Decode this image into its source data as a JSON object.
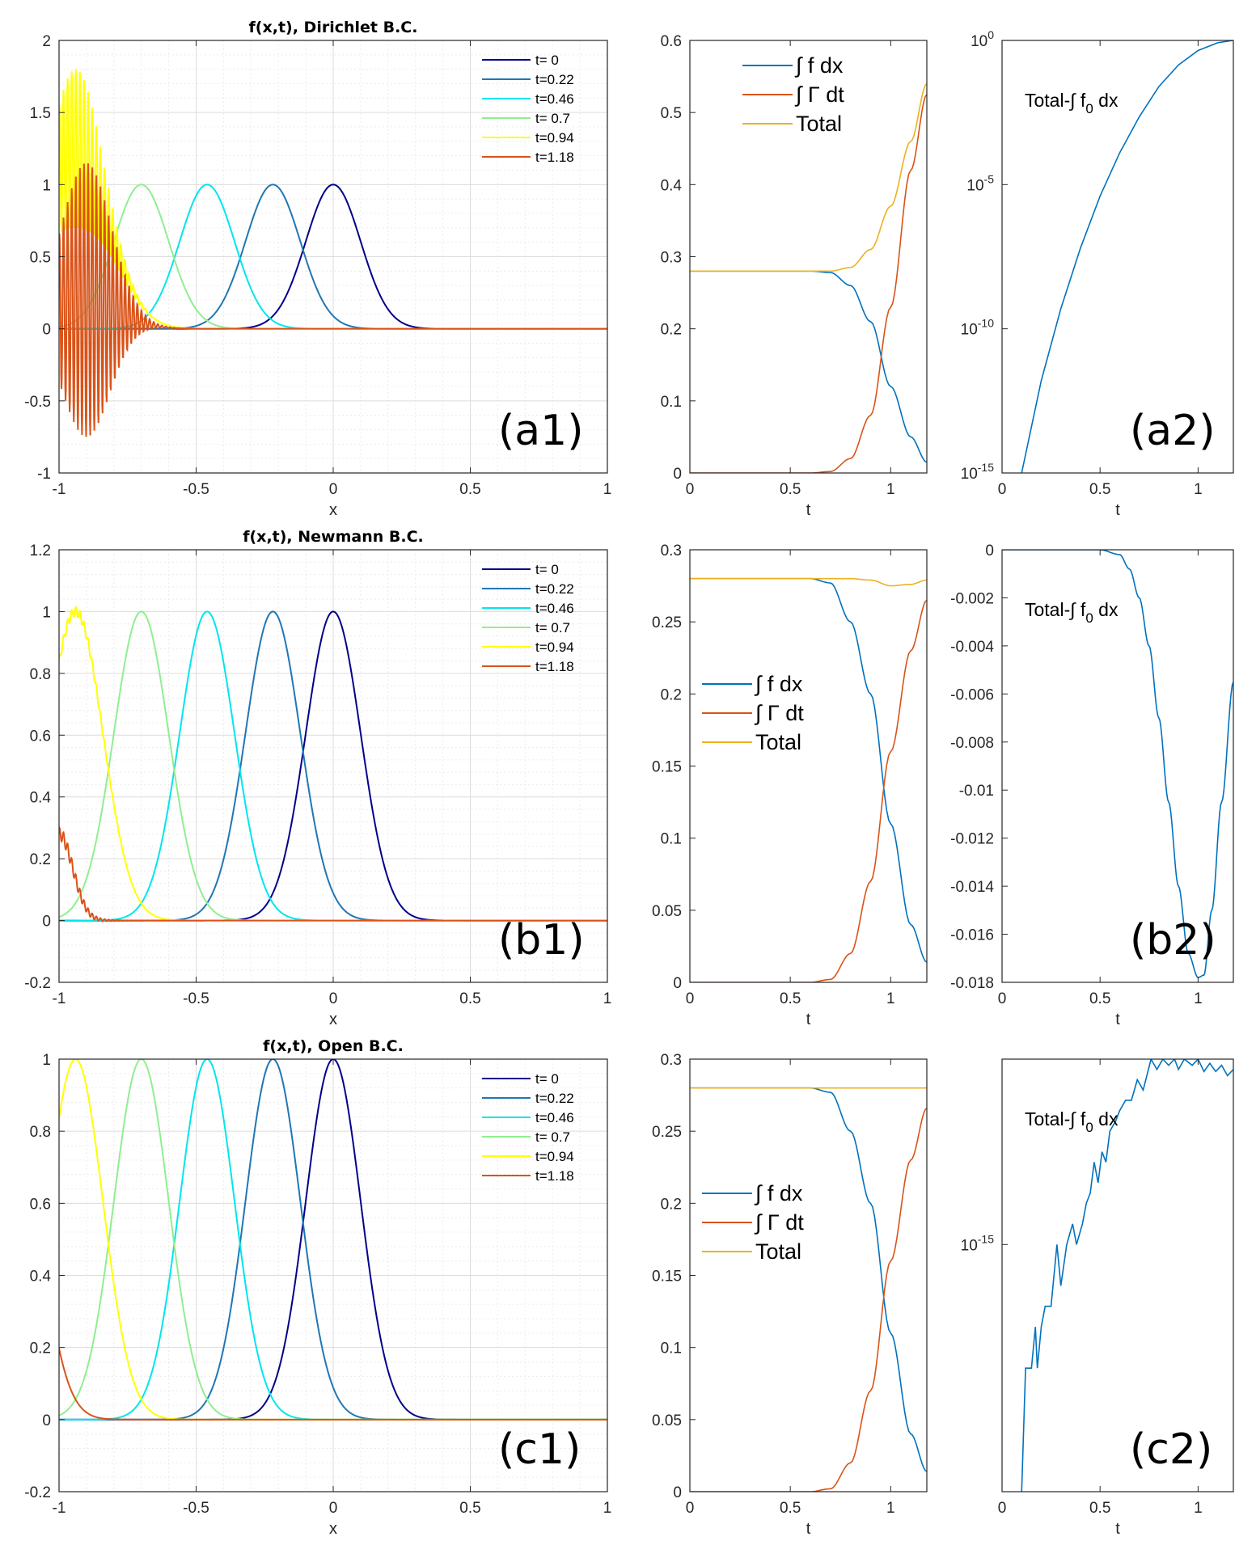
{
  "chart_data": [
    {
      "id": "left-a1",
      "type": "line",
      "title": "f(x,t), Dirichlet B.C.",
      "xlabel": "x",
      "ylabel": "",
      "xlim": [
        -1,
        1
      ],
      "ylim": [
        -1,
        2
      ],
      "xticks": [
        -1,
        -0.5,
        0,
        0.5,
        1
      ],
      "xticklabels": [
        "-1",
        "-0.5",
        "0",
        "0.5",
        "1"
      ],
      "yticks": [
        -1,
        -0.5,
        0,
        0.5,
        1,
        1.5,
        2
      ],
      "yticklabels": [
        "-1",
        "-0.5",
        "0",
        "0.5",
        "1",
        "1.5",
        "2"
      ],
      "grid": true,
      "legend_position": "top-right",
      "panel_label": "(a1)",
      "series": [
        {
          "name": "t=   0",
          "center": 0.0,
          "amplitude": 1,
          "width": 0.1,
          "color": "#00008b"
        },
        {
          "name": "t=0.22",
          "center": -0.22,
          "amplitude": 1,
          "width": 0.1,
          "color": "#1f77b4"
        },
        {
          "name": "t=0.46",
          "center": -0.46,
          "amplitude": 1,
          "width": 0.1,
          "color": "#00e5ee"
        },
        {
          "name": "t= 0.7",
          "center": -0.7,
          "amplitude": 1,
          "width": 0.1,
          "color": "#90ee90"
        },
        {
          "name": "t=0.94",
          "center": -0.94,
          "amplitude": 1.25,
          "width": 0.12,
          "oscillation": 0.55,
          "color": "#ffff00"
        },
        {
          "name": "t=1.18",
          "center": -0.9,
          "amplitude": 0.2,
          "width": 0.12,
          "oscillation": 0.95,
          "color": "#d95319"
        }
      ]
    },
    {
      "id": "mid-a",
      "type": "line",
      "xlabel": "t",
      "xlim": [
        0,
        1.18
      ],
      "ylim": [
        0,
        0.6
      ],
      "xticks": [
        0,
        0.5,
        1
      ],
      "xticklabels": [
        "0",
        "0.5",
        "1"
      ],
      "yticks": [
        0,
        0.1,
        0.2,
        0.3,
        0.4,
        0.5,
        0.6
      ],
      "yticklabels": [
        "0",
        "0.1",
        "0.2",
        "0.3",
        "0.4",
        "0.5",
        "0.6"
      ],
      "legend_position": "top-center",
      "series": [
        {
          "name": "∫ f dx",
          "color": "#0072bd",
          "points": [
            [
              0,
              0.28
            ],
            [
              0.6,
              0.28
            ],
            [
              0.7,
              0.278
            ],
            [
              0.8,
              0.26
            ],
            [
              0.9,
              0.21
            ],
            [
              1.0,
              0.12
            ],
            [
              1.1,
              0.05
            ],
            [
              1.18,
              0.015
            ]
          ]
        },
        {
          "name": "∫ Γ dt",
          "color": "#d95319",
          "points": [
            [
              0,
              0.0
            ],
            [
              0.6,
              0.0
            ],
            [
              0.7,
              0.002
            ],
            [
              0.8,
              0.02
            ],
            [
              0.9,
              0.08
            ],
            [
              1.0,
              0.23
            ],
            [
              1.1,
              0.42
            ],
            [
              1.18,
              0.525
            ]
          ]
        },
        {
          "name": "Total",
          "color": "#edb120",
          "points": [
            [
              0,
              0.28
            ],
            [
              0.7,
              0.28
            ],
            [
              0.8,
              0.285
            ],
            [
              0.9,
              0.31
            ],
            [
              1.0,
              0.37
            ],
            [
              1.1,
              0.46
            ],
            [
              1.18,
              0.54
            ]
          ]
        }
      ]
    },
    {
      "id": "right-a2",
      "type": "line",
      "yscale": "log",
      "xlabel": "t",
      "xlim": [
        0,
        1.18
      ],
      "ylim_exp": [
        -15,
        0
      ],
      "xticks": [
        0,
        0.5,
        1
      ],
      "xticklabels": [
        "0",
        "0.5",
        "1"
      ],
      "yticks_exp": [
        -15,
        -10,
        -5,
        0
      ],
      "yticklabel_base": "10",
      "ytickexps": [
        "-15",
        "-10",
        "-5",
        "0"
      ],
      "annotation": "Total-∫ f",
      "annotation_sub": "0",
      "annotation_tail": " dx",
      "panel_label": "(a2)",
      "series": [
        {
          "name": "Total-∫ f0 dx",
          "color": "#0072bd",
          "points_exp": [
            [
              0.1,
              -15
            ],
            [
              0.2,
              -11.8
            ],
            [
              0.3,
              -9.3
            ],
            [
              0.4,
              -7.2
            ],
            [
              0.5,
              -5.4
            ],
            [
              0.6,
              -3.9
            ],
            [
              0.7,
              -2.65
            ],
            [
              0.8,
              -1.6
            ],
            [
              0.9,
              -0.85
            ],
            [
              1.0,
              -0.35
            ],
            [
              1.1,
              -0.08
            ],
            [
              1.18,
              0
            ]
          ]
        }
      ]
    },
    {
      "id": "left-b1",
      "type": "line",
      "title": "f(x,t), Newmann B.C.",
      "xlabel": "x",
      "xlim": [
        -1,
        1
      ],
      "ylim": [
        -0.2,
        1.2
      ],
      "xticks": [
        -1,
        -0.5,
        0,
        0.5,
        1
      ],
      "xticklabels": [
        "-1",
        "-0.5",
        "0",
        "0.5",
        "1"
      ],
      "yticks": [
        -0.2,
        0,
        0.2,
        0.4,
        0.6,
        0.8,
        1,
        1.2
      ],
      "yticklabels": [
        "-0.2",
        "0",
        "0.2",
        "0.4",
        "0.6",
        "0.8",
        "1",
        "1.2"
      ],
      "grid": true,
      "legend_position": "top-right",
      "panel_label": "(b1)",
      "series": [
        {
          "name": "t=   0",
          "center": 0.0,
          "amplitude": 1,
          "width": 0.1,
          "color": "#00008b"
        },
        {
          "name": "t=0.22",
          "center": -0.22,
          "amplitude": 1,
          "width": 0.1,
          "color": "#1f77b4"
        },
        {
          "name": "t=0.46",
          "center": -0.46,
          "amplitude": 1,
          "width": 0.1,
          "color": "#00e5ee"
        },
        {
          "name": "t= 0.7",
          "center": -0.7,
          "amplitude": 1,
          "width": 0.1,
          "color": "#90ee90"
        },
        {
          "name": "t=0.94",
          "center": -0.94,
          "amplitude": 1,
          "width": 0.1,
          "oscillation": 0.015,
          "color": "#ffff00"
        },
        {
          "name": "t=1.18",
          "center": -1.0,
          "amplitude": 0.28,
          "width": 0.05,
          "oscillation": 0.02,
          "color": "#d95319"
        }
      ]
    },
    {
      "id": "mid-b",
      "type": "line",
      "xlabel": "t",
      "xlim": [
        0,
        1.18
      ],
      "ylim": [
        0,
        0.3
      ],
      "xticks": [
        0,
        0.5,
        1
      ],
      "xticklabels": [
        "0",
        "0.5",
        "1"
      ],
      "yticks": [
        0,
        0.05,
        0.1,
        0.15,
        0.2,
        0.25,
        0.3
      ],
      "yticklabels": [
        "0",
        "0.05",
        "0.1",
        "0.15",
        "0.2",
        "0.25",
        "0.3"
      ],
      "legend_position": "center-left",
      "series": [
        {
          "name": "∫ f dx",
          "color": "#0072bd",
          "points": [
            [
              0,
              0.28
            ],
            [
              0.6,
              0.28
            ],
            [
              0.7,
              0.277
            ],
            [
              0.8,
              0.25
            ],
            [
              0.9,
              0.2
            ],
            [
              1.0,
              0.11
            ],
            [
              1.1,
              0.04
            ],
            [
              1.18,
              0.014
            ]
          ]
        },
        {
          "name": "∫ Γ dt",
          "color": "#d95319",
          "points": [
            [
              0,
              0.0
            ],
            [
              0.6,
              0.0
            ],
            [
              0.7,
              0.002
            ],
            [
              0.8,
              0.02
            ],
            [
              0.9,
              0.07
            ],
            [
              1.0,
              0.16
            ],
            [
              1.1,
              0.23
            ],
            [
              1.18,
              0.265
            ]
          ]
        },
        {
          "name": "Total",
          "color": "#edb120",
          "points": [
            [
              0,
              0.28
            ],
            [
              0.8,
              0.28
            ],
            [
              0.9,
              0.279
            ],
            [
              1.0,
              0.275
            ],
            [
              1.1,
              0.276
            ],
            [
              1.18,
              0.279
            ]
          ]
        }
      ]
    },
    {
      "id": "right-b2",
      "type": "line",
      "xlabel": "t",
      "xlim": [
        0,
        1.18
      ],
      "ylim": [
        -0.018,
        0
      ],
      "xticks": [
        0,
        0.5,
        1
      ],
      "xticklabels": [
        "0",
        "0.5",
        "1"
      ],
      "yticks": [
        -0.018,
        -0.016,
        -0.014,
        -0.012,
        -0.01,
        -0.008,
        -0.006,
        -0.004,
        -0.002,
        0
      ],
      "yticklabels": [
        "-0.018",
        "-0.016",
        "-0.014",
        "-0.012",
        "-0.01",
        "-0.008",
        "-0.006",
        "-0.004",
        "-0.002",
        "0"
      ],
      "annotation": "Total-∫ f",
      "annotation_sub": "0",
      "annotation_tail": " dx",
      "panel_label": "(b2)",
      "series": [
        {
          "name": "Total-∫ f0 dx",
          "color": "#0072bd",
          "points": [
            [
              0,
              0
            ],
            [
              0.5,
              0
            ],
            [
              0.6,
              -0.0002
            ],
            [
              0.65,
              -0.0008
            ],
            [
              0.7,
              -0.002
            ],
            [
              0.75,
              -0.004
            ],
            [
              0.8,
              -0.007
            ],
            [
              0.85,
              -0.0105
            ],
            [
              0.9,
              -0.014
            ],
            [
              0.95,
              -0.0168
            ],
            [
              1.0,
              -0.0178
            ],
            [
              1.03,
              -0.0177
            ],
            [
              1.07,
              -0.015
            ],
            [
              1.12,
              -0.0105
            ],
            [
              1.18,
              -0.0055
            ]
          ]
        }
      ]
    },
    {
      "id": "left-c1",
      "type": "line",
      "title": "f(x,t), Open B.C.",
      "xlabel": "x",
      "xlim": [
        -1,
        1
      ],
      "ylim": [
        -0.2,
        1
      ],
      "xticks": [
        -1,
        -0.5,
        0,
        0.5,
        1
      ],
      "xticklabels": [
        "-1",
        "-0.5",
        "0",
        "0.5",
        "1"
      ],
      "yticks": [
        -0.2,
        0,
        0.2,
        0.4,
        0.6,
        0.8,
        1
      ],
      "yticklabels": [
        "-0.2",
        "0",
        "0.2",
        "0.4",
        "0.6",
        "0.8",
        "1"
      ],
      "grid": true,
      "legend_position": "top-right",
      "panel_label": "(c1)",
      "series": [
        {
          "name": "t=   0",
          "center": 0.0,
          "amplitude": 1,
          "width": 0.1,
          "color": "#00008b"
        },
        {
          "name": "t=0.22",
          "center": -0.22,
          "amplitude": 1,
          "width": 0.1,
          "color": "#1f77b4"
        },
        {
          "name": "t=0.46",
          "center": -0.46,
          "amplitude": 1,
          "width": 0.1,
          "color": "#00e5ee"
        },
        {
          "name": "t= 0.7",
          "center": -0.7,
          "amplitude": 1,
          "width": 0.1,
          "color": "#90ee90"
        },
        {
          "name": "t=0.94",
          "center": -0.94,
          "amplitude": 1,
          "width": 0.1,
          "color": "#ffff00"
        },
        {
          "name": "t=1.18",
          "center": -1.18,
          "amplitude": 1,
          "width": 0.1,
          "color": "#d95319"
        }
      ]
    },
    {
      "id": "mid-c",
      "type": "line",
      "xlabel": "t",
      "xlim": [
        0,
        1.18
      ],
      "ylim": [
        0,
        0.3
      ],
      "xticks": [
        0,
        0.5,
        1
      ],
      "xticklabels": [
        "0",
        "0.5",
        "1"
      ],
      "yticks": [
        0,
        0.05,
        0.1,
        0.15,
        0.2,
        0.25,
        0.3
      ],
      "yticklabels": [
        "0",
        "0.05",
        "0.1",
        "0.15",
        "0.2",
        "0.25",
        "0.3"
      ],
      "legend_position": "center-left",
      "series": [
        {
          "name": "∫ f dx",
          "color": "#0072bd",
          "points": [
            [
              0,
              0.28
            ],
            [
              0.6,
              0.28
            ],
            [
              0.7,
              0.277
            ],
            [
              0.8,
              0.25
            ],
            [
              0.9,
              0.2
            ],
            [
              1.0,
              0.11
            ],
            [
              1.1,
              0.04
            ],
            [
              1.18,
              0.014
            ]
          ]
        },
        {
          "name": "∫ Γ dt",
          "color": "#d95319",
          "points": [
            [
              0,
              0.0
            ],
            [
              0.6,
              0.0
            ],
            [
              0.7,
              0.002
            ],
            [
              0.8,
              0.02
            ],
            [
              0.9,
              0.07
            ],
            [
              1.0,
              0.16
            ],
            [
              1.1,
              0.23
            ],
            [
              1.18,
              0.266
            ]
          ]
        },
        {
          "name": "Total",
          "color": "#edb120",
          "points": [
            [
              0,
              0.28
            ],
            [
              1.18,
              0.28
            ]
          ]
        }
      ]
    },
    {
      "id": "right-c2",
      "type": "line",
      "yscale": "log",
      "xlabel": "t",
      "xlim": [
        0,
        1.18
      ],
      "ylim_exp": [
        -16.2,
        -14.1
      ],
      "xticks": [
        0,
        0.5,
        1
      ],
      "xticklabels": [
        "0",
        "0.5",
        "1"
      ],
      "yticks_exp": [
        -15
      ],
      "yticklabel_base": "10",
      "ytickexps": [
        "-15"
      ],
      "annotation": "Total-∫ f",
      "annotation_sub": "0",
      "annotation_tail": " dx",
      "panel_label": "(c2)",
      "series": [
        {
          "name": "Total-∫ f0 dx",
          "color": "#0072bd",
          "points_exp": [
            [
              0.1,
              -16.2
            ],
            [
              0.12,
              -15.6
            ],
            [
              0.15,
              -15.6
            ],
            [
              0.17,
              -15.4
            ],
            [
              0.18,
              -15.6
            ],
            [
              0.2,
              -15.4
            ],
            [
              0.22,
              -15.3
            ],
            [
              0.25,
              -15.3
            ],
            [
              0.28,
              -15.0
            ],
            [
              0.3,
              -15.2
            ],
            [
              0.33,
              -15.0
            ],
            [
              0.36,
              -14.9
            ],
            [
              0.38,
              -15.0
            ],
            [
              0.41,
              -14.9
            ],
            [
              0.43,
              -14.8
            ],
            [
              0.45,
              -14.75
            ],
            [
              0.47,
              -14.6
            ],
            [
              0.49,
              -14.7
            ],
            [
              0.51,
              -14.55
            ],
            [
              0.53,
              -14.6
            ],
            [
              0.55,
              -14.45
            ],
            [
              0.58,
              -14.4
            ],
            [
              0.6,
              -14.35
            ],
            [
              0.63,
              -14.3
            ],
            [
              0.66,
              -14.3
            ],
            [
              0.69,
              -14.2
            ],
            [
              0.72,
              -14.25
            ],
            [
              0.76,
              -14.1
            ],
            [
              0.79,
              -14.15
            ],
            [
              0.82,
              -14.1
            ],
            [
              0.85,
              -14.13
            ],
            [
              0.88,
              -14.1
            ],
            [
              0.9,
              -14.15
            ],
            [
              0.93,
              -14.1
            ],
            [
              0.97,
              -14.13
            ],
            [
              1.0,
              -14.1
            ],
            [
              1.03,
              -14.16
            ],
            [
              1.06,
              -14.12
            ],
            [
              1.09,
              -14.16
            ],
            [
              1.12,
              -14.13
            ],
            [
              1.15,
              -14.18
            ],
            [
              1.18,
              -14.15
            ]
          ]
        }
      ]
    }
  ]
}
